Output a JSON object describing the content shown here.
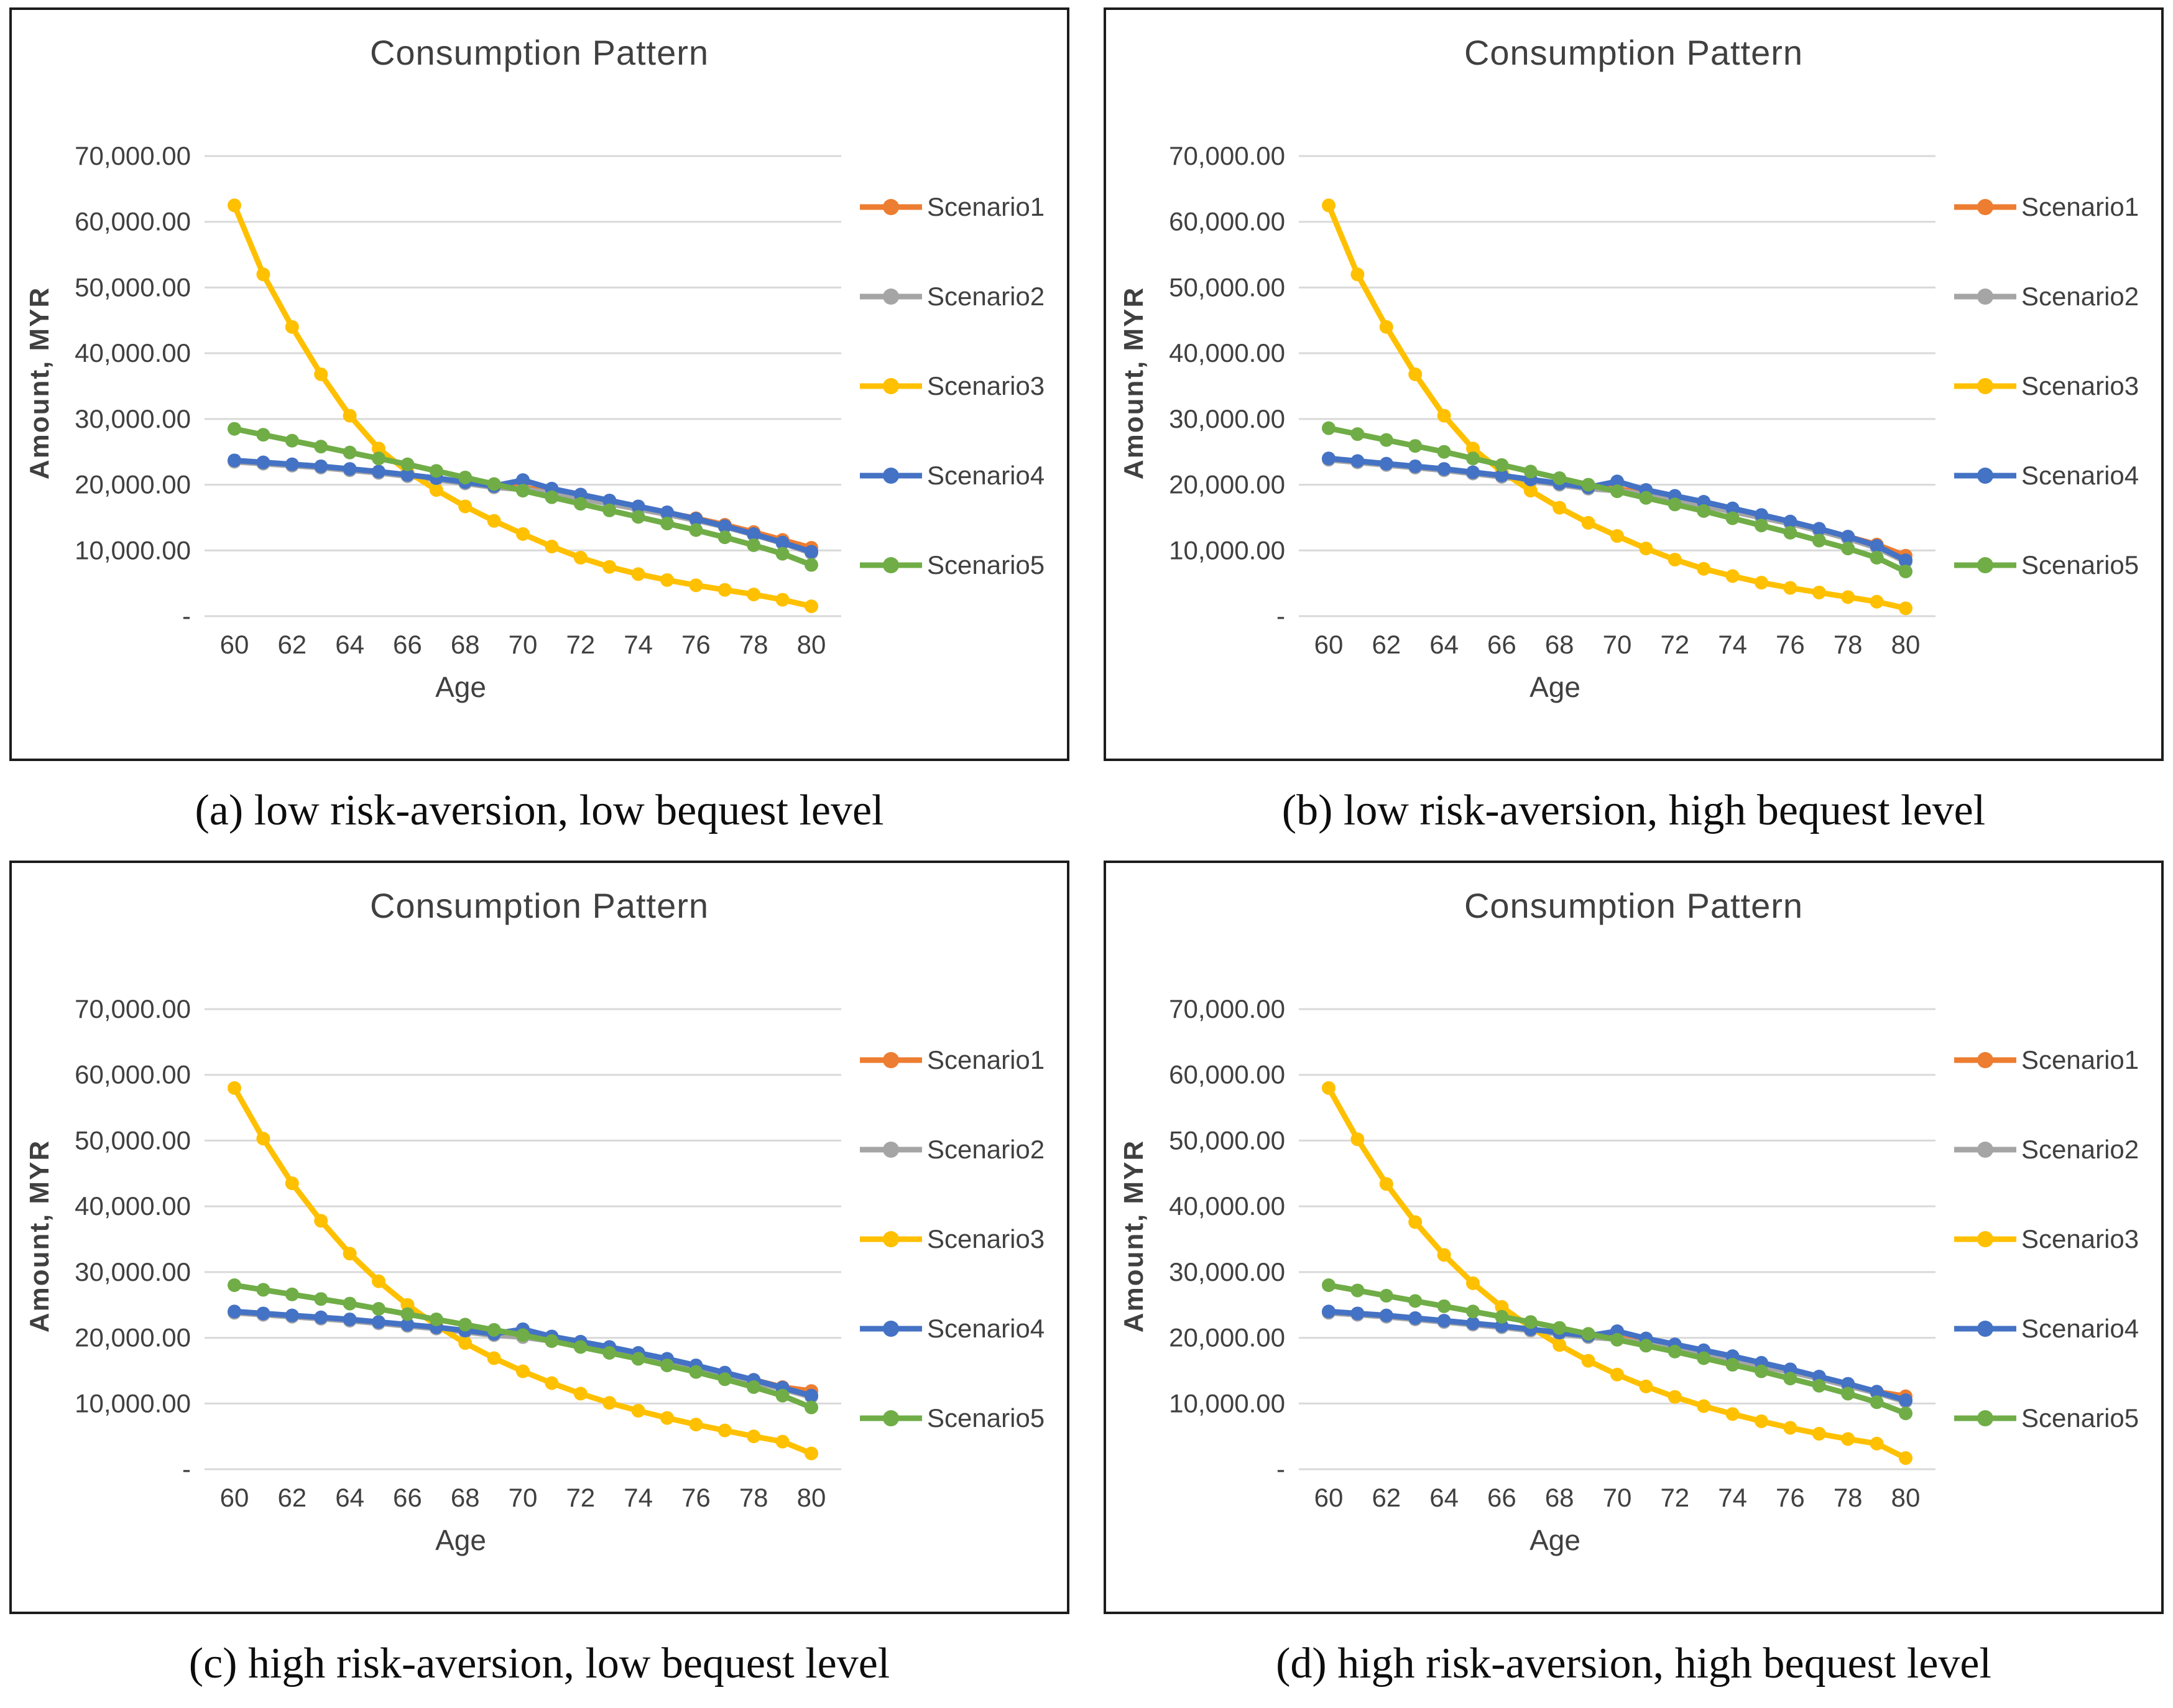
{
  "style": {
    "grid_color": "#d9d9d9",
    "axis_text_color": "#404040",
    "title_color": "#404040",
    "panel_border_color": "#1c1c1c",
    "background": "#ffffff"
  },
  "chart_data": [
    {
      "id": "a",
      "type": "line",
      "title": "Consumption Pattern",
      "caption": "(a) low risk-aversion, low bequest level",
      "xlabel": "Age",
      "ylabel": "Amount, MYR",
      "x": [
        60,
        61,
        62,
        63,
        64,
        65,
        66,
        67,
        68,
        69,
        70,
        71,
        72,
        73,
        74,
        75,
        76,
        77,
        78,
        79,
        80
      ],
      "x_tick_labels": [
        "60",
        "62",
        "64",
        "66",
        "68",
        "70",
        "72",
        "74",
        "76",
        "78",
        "80"
      ],
      "ylim": [
        0,
        75000
      ],
      "grid": "horizontal",
      "legend_position": "right",
      "y_ticks": [
        {
          "v": 70000,
          "label": "70,000.00"
        },
        {
          "v": 60000,
          "label": "60,000.00"
        },
        {
          "v": 50000,
          "label": "50,000.00"
        },
        {
          "v": 40000,
          "label": "40,000.00"
        },
        {
          "v": 30000,
          "label": "30,000.00"
        },
        {
          "v": 20000,
          "label": "20,000.00"
        },
        {
          "v": 10000,
          "label": "10,000.00"
        },
        {
          "v": 0,
          "label": "-"
        }
      ],
      "series": [
        {
          "name": "Scenario1",
          "color": "#ED7D31",
          "values": [
            23600,
            23300,
            23000,
            22700,
            22300,
            21900,
            21400,
            20900,
            20300,
            19700,
            19600,
            18900,
            18100,
            17300,
            16500,
            15700,
            14900,
            13900,
            12800,
            11600,
            10400
          ]
        },
        {
          "name": "Scenario2",
          "color": "#A5A5A5",
          "values": [
            23500,
            23200,
            22900,
            22600,
            22200,
            21800,
            21300,
            20800,
            20200,
            19600,
            19300,
            18700,
            17900,
            17100,
            16300,
            15500,
            14600,
            13600,
            12400,
            11100,
            9600
          ]
        },
        {
          "name": "Scenario3",
          "color": "#FFC000",
          "values": [
            62500,
            52000,
            44000,
            36800,
            30500,
            25500,
            22000,
            19200,
            16700,
            14500,
            12500,
            10600,
            8900,
            7500,
            6400,
            5500,
            4700,
            4000,
            3300,
            2500,
            1500
          ]
        },
        {
          "name": "Scenario4",
          "color": "#4472C4",
          "values": [
            23700,
            23400,
            23100,
            22800,
            22400,
            22000,
            21500,
            21000,
            20400,
            19800,
            20700,
            19400,
            18500,
            17600,
            16700,
            15800,
            14800,
            13700,
            12500,
            11200,
            9800
          ]
        },
        {
          "name": "Scenario5",
          "color": "#70AD47",
          "values": [
            28500,
            27600,
            26700,
            25800,
            24900,
            24000,
            23100,
            22100,
            21100,
            20100,
            19100,
            18100,
            17100,
            16100,
            15100,
            14100,
            13100,
            12000,
            10800,
            9500,
            7800
          ]
        }
      ]
    },
    {
      "id": "b",
      "type": "line",
      "title": "Consumption Pattern",
      "caption": "(b) low risk-aversion, high bequest level",
      "xlabel": "Age",
      "ylabel": "Amount, MYR",
      "x": [
        60,
        61,
        62,
        63,
        64,
        65,
        66,
        67,
        68,
        69,
        70,
        71,
        72,
        73,
        74,
        75,
        76,
        77,
        78,
        79,
        80
      ],
      "x_tick_labels": [
        "60",
        "62",
        "64",
        "66",
        "68",
        "70",
        "72",
        "74",
        "76",
        "78",
        "80"
      ],
      "ylim": [
        0,
        75000
      ],
      "grid": "horizontal",
      "legend_position": "right",
      "y_ticks": [
        {
          "v": 70000,
          "label": "70,000.00"
        },
        {
          "v": 60000,
          "label": "60,000.00"
        },
        {
          "v": 50000,
          "label": "50,000.00"
        },
        {
          "v": 40000,
          "label": "40,000.00"
        },
        {
          "v": 30000,
          "label": "30,000.00"
        },
        {
          "v": 20000,
          "label": "20,000.00"
        },
        {
          "v": 10000,
          "label": "10,000.00"
        },
        {
          "v": 0,
          "label": "-"
        }
      ],
      "series": [
        {
          "name": "Scenario1",
          "color": "#ED7D31",
          "values": [
            23900,
            23500,
            23100,
            22700,
            22300,
            21800,
            21300,
            20700,
            20100,
            19500,
            19400,
            18700,
            17900,
            17000,
            16100,
            15200,
            14300,
            13200,
            12100,
            10900,
            9200
          ]
        },
        {
          "name": "Scenario2",
          "color": "#A5A5A5",
          "values": [
            23800,
            23400,
            23000,
            22600,
            22200,
            21700,
            21200,
            20600,
            20000,
            19400,
            19100,
            18500,
            17700,
            16800,
            15900,
            15000,
            14100,
            13000,
            11800,
            10400,
            8300
          ]
        },
        {
          "name": "Scenario3",
          "color": "#FFC000",
          "values": [
            62500,
            52000,
            44000,
            36800,
            30500,
            25500,
            22000,
            19100,
            16500,
            14200,
            12200,
            10300,
            8600,
            7200,
            6100,
            5100,
            4300,
            3600,
            2900,
            2200,
            1200
          ]
        },
        {
          "name": "Scenario4",
          "color": "#4472C4",
          "values": [
            24000,
            23600,
            23200,
            22800,
            22400,
            21900,
            21400,
            20800,
            20200,
            19600,
            20500,
            19200,
            18300,
            17400,
            16400,
            15400,
            14400,
            13300,
            12100,
            10700,
            8500
          ]
        },
        {
          "name": "Scenario5",
          "color": "#70AD47",
          "values": [
            28600,
            27700,
            26800,
            25900,
            25000,
            24000,
            23000,
            22000,
            21000,
            20000,
            19000,
            18000,
            17000,
            16000,
            14900,
            13800,
            12700,
            11500,
            10300,
            8900,
            6800
          ]
        }
      ]
    },
    {
      "id": "c",
      "type": "line",
      "title": "Consumption Pattern",
      "caption": "(c) high risk-aversion, low bequest level",
      "xlabel": "Age",
      "ylabel": "Amount, MYR",
      "x": [
        60,
        61,
        62,
        63,
        64,
        65,
        66,
        67,
        68,
        69,
        70,
        71,
        72,
        73,
        74,
        75,
        76,
        77,
        78,
        79,
        80
      ],
      "x_tick_labels": [
        "60",
        "62",
        "64",
        "66",
        "68",
        "70",
        "72",
        "74",
        "76",
        "78",
        "80"
      ],
      "ylim": [
        0,
        75000
      ],
      "grid": "horizontal",
      "legend_position": "right",
      "y_ticks": [
        {
          "v": 70000,
          "label": "70,000.00"
        },
        {
          "v": 60000,
          "label": "60,000.00"
        },
        {
          "v": 50000,
          "label": "50,000.00"
        },
        {
          "v": 40000,
          "label": "40,000.00"
        },
        {
          "v": 30000,
          "label": "30,000.00"
        },
        {
          "v": 20000,
          "label": "20,000.00"
        },
        {
          "v": 10000,
          "label": "10,000.00"
        },
        {
          "v": 0,
          "label": "-"
        }
      ],
      "series": [
        {
          "name": "Scenario1",
          "color": "#ED7D31",
          "values": [
            23900,
            23600,
            23300,
            23000,
            22700,
            22300,
            21900,
            21500,
            21000,
            20500,
            20300,
            19700,
            18900,
            18100,
            17300,
            16500,
            15600,
            14600,
            13600,
            12500,
            11900
          ]
        },
        {
          "name": "Scenario2",
          "color": "#A5A5A5",
          "values": [
            23800,
            23500,
            23200,
            22900,
            22600,
            22200,
            21800,
            21400,
            20900,
            20400,
            20100,
            19500,
            18700,
            17900,
            17100,
            16300,
            15400,
            14400,
            13300,
            12200,
            11000
          ]
        },
        {
          "name": "Scenario3",
          "color": "#FFC000",
          "values": [
            58000,
            50300,
            43500,
            37800,
            32800,
            28600,
            25000,
            21900,
            19200,
            16900,
            14900,
            13100,
            11500,
            10100,
            8900,
            7800,
            6800,
            5900,
            5000,
            4200,
            2400
          ]
        },
        {
          "name": "Scenario4",
          "color": "#4472C4",
          "values": [
            24000,
            23700,
            23400,
            23100,
            22800,
            22400,
            22000,
            21600,
            21100,
            20600,
            21300,
            20200,
            19400,
            18600,
            17700,
            16800,
            15800,
            14700,
            13600,
            12400,
            11200
          ]
        },
        {
          "name": "Scenario5",
          "color": "#70AD47",
          "values": [
            28000,
            27300,
            26600,
            25900,
            25200,
            24400,
            23600,
            22800,
            22000,
            21200,
            20400,
            19500,
            18600,
            17700,
            16800,
            15800,
            14800,
            13700,
            12500,
            11200,
            9400
          ]
        }
      ]
    },
    {
      "id": "d",
      "type": "line",
      "title": "Consumption Pattern",
      "caption": "(d) high risk-aversion, high bequest level",
      "xlabel": "Age",
      "ylabel": "Amount, MYR",
      "x": [
        60,
        61,
        62,
        63,
        64,
        65,
        66,
        67,
        68,
        69,
        70,
        71,
        72,
        73,
        74,
        75,
        76,
        77,
        78,
        79,
        80
      ],
      "x_tick_labels": [
        "60",
        "62",
        "64",
        "66",
        "68",
        "70",
        "72",
        "74",
        "76",
        "78",
        "80"
      ],
      "ylim": [
        0,
        75000
      ],
      "grid": "horizontal",
      "legend_position": "right",
      "y_ticks": [
        {
          "v": 70000,
          "label": "70,000.00"
        },
        {
          "v": 60000,
          "label": "60,000.00"
        },
        {
          "v": 50000,
          "label": "50,000.00"
        },
        {
          "v": 40000,
          "label": "40,000.00"
        },
        {
          "v": 30000,
          "label": "30,000.00"
        },
        {
          "v": 20000,
          "label": "20,000.00"
        },
        {
          "v": 10000,
          "label": "10,000.00"
        },
        {
          "v": 0,
          "label": "-"
        }
      ],
      "series": [
        {
          "name": "Scenario1",
          "color": "#ED7D31",
          "values": [
            23900,
            23600,
            23300,
            22900,
            22500,
            22100,
            21700,
            21200,
            20700,
            20200,
            20000,
            19300,
            18500,
            17700,
            16800,
            15900,
            15000,
            14000,
            12900,
            11800,
            11100
          ]
        },
        {
          "name": "Scenario2",
          "color": "#A5A5A5",
          "values": [
            23800,
            23500,
            23200,
            22800,
            22400,
            22000,
            21600,
            21100,
            20600,
            20100,
            19800,
            19100,
            18300,
            17500,
            16600,
            15700,
            14800,
            13800,
            12700,
            11600,
            10300
          ]
        },
        {
          "name": "Scenario3",
          "color": "#FFC000",
          "values": [
            58000,
            50200,
            43400,
            37600,
            32600,
            28300,
            24700,
            21600,
            18900,
            16500,
            14400,
            12600,
            11000,
            9600,
            8400,
            7300,
            6300,
            5400,
            4600,
            3900,
            1700
          ]
        },
        {
          "name": "Scenario4",
          "color": "#4472C4",
          "values": [
            24000,
            23700,
            23400,
            23000,
            22600,
            22200,
            21800,
            21300,
            20800,
            20300,
            21000,
            19900,
            19000,
            18100,
            17200,
            16200,
            15200,
            14100,
            13000,
            11800,
            10500
          ]
        },
        {
          "name": "Scenario5",
          "color": "#70AD47",
          "values": [
            28000,
            27200,
            26400,
            25600,
            24800,
            24000,
            23200,
            22400,
            21500,
            20600,
            19700,
            18800,
            17900,
            16900,
            15900,
            14900,
            13800,
            12700,
            11500,
            10200,
            8500
          ]
        }
      ]
    }
  ]
}
